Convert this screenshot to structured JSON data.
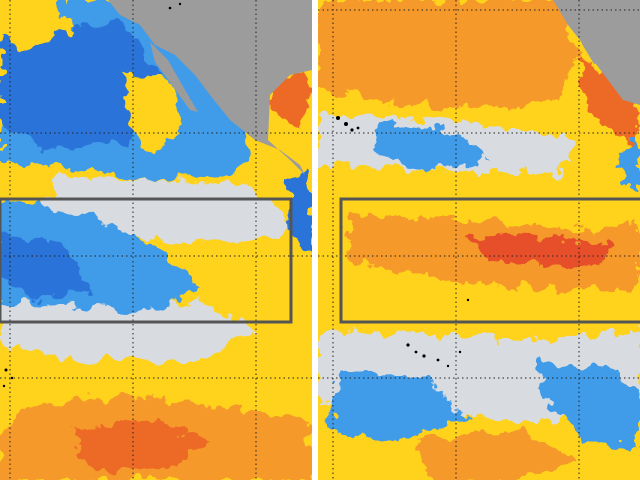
{
  "maps": [
    {
      "id": "left",
      "colors": {
        "ocean_blue": "#3f9be8",
        "ocean_blue_dark": "#2b73d9",
        "neutral": "#d8dce0",
        "yellow": "#ffd21c",
        "orange": "#f59a2a",
        "red_orange": "#ec6a28",
        "land": "#9c9c9c"
      }
    },
    {
      "id": "right",
      "colors": {
        "ocean_blue": "#3f9be8",
        "neutral": "#d8dce0",
        "yellow": "#ffd21c",
        "orange": "#f59a2a",
        "red_orange": "#e6502a",
        "land": "#9c9c9c"
      }
    }
  ],
  "legend_absent": true
}
